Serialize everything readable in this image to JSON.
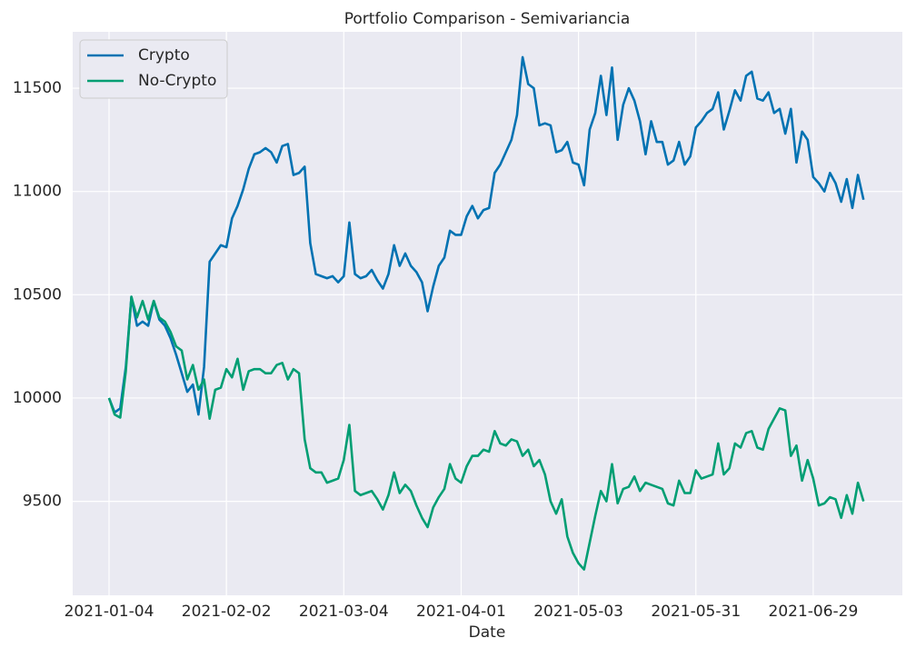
{
  "chart_data": {
    "type": "line",
    "title": "Portfolio Comparison - Semivariancia",
    "xlabel": "Date",
    "categories": [
      "2021-01-04",
      null,
      null,
      null,
      null,
      null,
      null,
      null,
      null,
      null,
      null,
      null,
      null,
      null,
      null,
      null,
      null,
      null,
      null,
      null,
      null,
      "2021-02-02",
      null,
      null,
      null,
      null,
      null,
      null,
      null,
      null,
      null,
      null,
      null,
      null,
      null,
      null,
      null,
      null,
      null,
      null,
      null,
      null,
      "2021-03-04",
      null,
      null,
      null,
      null,
      null,
      null,
      null,
      null,
      null,
      null,
      null,
      null,
      null,
      null,
      null,
      null,
      null,
      null,
      null,
      null,
      "2021-04-01",
      null,
      null,
      null,
      null,
      null,
      null,
      null,
      null,
      null,
      null,
      null,
      null,
      null,
      null,
      null,
      null,
      null,
      null,
      null,
      null,
      "2021-05-03",
      null,
      null,
      null,
      null,
      null,
      null,
      null,
      null,
      null,
      null,
      null,
      null,
      null,
      null,
      null,
      null,
      null,
      null,
      null,
      null,
      "2021-05-31",
      null,
      null,
      null,
      null,
      null,
      null,
      null,
      null,
      null,
      null,
      null,
      null,
      null,
      null,
      null,
      null,
      null,
      null,
      null,
      null,
      "2021-06-29",
      null,
      null,
      null,
      null,
      null,
      null,
      null,
      null,
      null
    ],
    "series": [
      {
        "name": "Crypto",
        "color": "#0072b2",
        "values": [
          10000,
          9930,
          9950,
          10150,
          10490,
          10350,
          10370,
          10350,
          10470,
          10380,
          10350,
          10290,
          10210,
          10120,
          10030,
          10065,
          9920,
          10150,
          10660,
          10700,
          10740,
          10730,
          10870,
          10930,
          11010,
          11110,
          11180,
          11190,
          11210,
          11190,
          11140,
          11220,
          11230,
          11080,
          11090,
          11120,
          10750,
          10600,
          10590,
          10580,
          10590,
          10560,
          10590,
          10850,
          10600,
          10580,
          10590,
          10620,
          10570,
          10530,
          10600,
          10740,
          10640,
          10700,
          10640,
          10610,
          10560,
          10420,
          10540,
          10640,
          10680,
          10810,
          10790,
          10790,
          10880,
          10930,
          10870,
          10910,
          10920,
          11090,
          11130,
          11190,
          11250,
          11370,
          11650,
          11520,
          11500,
          11320,
          11330,
          11320,
          11190,
          11200,
          11240,
          11140,
          11130,
          11030,
          11300,
          11380,
          11560,
          11370,
          11600,
          11250,
          11420,
          11500,
          11440,
          11340,
          11180,
          11340,
          11240,
          11240,
          11130,
          11150,
          11240,
          11130,
          11170,
          11310,
          11340,
          11380,
          11400,
          11480,
          11300,
          11390,
          11490,
          11440,
          11560,
          11580,
          11450,
          11440,
          11480,
          11380,
          11400,
          11280,
          11400,
          11140,
          11290,
          11250,
          11070,
          11040,
          11000,
          11090,
          11040,
          10950,
          11060,
          10920,
          11080,
          10960
        ]
      },
      {
        "name": "No-Crypto",
        "color": "#009e73",
        "values": [
          10000,
          9920,
          9905,
          10130,
          10490,
          10390,
          10470,
          10380,
          10470,
          10390,
          10370,
          10320,
          10250,
          10230,
          10090,
          10160,
          10040,
          10090,
          9900,
          10040,
          10050,
          10140,
          10100,
          10190,
          10040,
          10130,
          10140,
          10140,
          10120,
          10120,
          10160,
          10170,
          10090,
          10140,
          10120,
          9800,
          9660,
          9640,
          9640,
          9590,
          9600,
          9610,
          9700,
          9870,
          9550,
          9530,
          9540,
          9550,
          9510,
          9460,
          9530,
          9640,
          9540,
          9580,
          9550,
          9480,
          9420,
          9375,
          9470,
          9520,
          9560,
          9680,
          9610,
          9590,
          9670,
          9720,
          9720,
          9750,
          9740,
          9840,
          9780,
          9770,
          9800,
          9790,
          9720,
          9750,
          9670,
          9700,
          9630,
          9500,
          9440,
          9510,
          9330,
          9250,
          9200,
          9170,
          9300,
          9430,
          9550,
          9500,
          9680,
          9490,
          9560,
          9570,
          9620,
          9550,
          9590,
          9580,
          9570,
          9560,
          9490,
          9480,
          9600,
          9540,
          9540,
          9650,
          9610,
          9620,
          9630,
          9780,
          9630,
          9660,
          9780,
          9760,
          9830,
          9840,
          9760,
          9750,
          9850,
          9900,
          9950,
          9940,
          9720,
          9770,
          9600,
          9700,
          9610,
          9480,
          9490,
          9520,
          9510,
          9420,
          9530,
          9440,
          9590,
          9500
        ]
      }
    ],
    "ylim": [
      9045,
      11773
    ],
    "yticks": [
      9500,
      10000,
      10500,
      11000,
      11500
    ],
    "grid": true,
    "legend": "upper left"
  }
}
